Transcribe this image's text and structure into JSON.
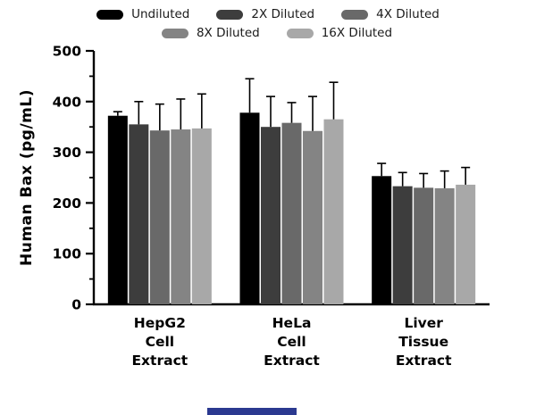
{
  "figure": {
    "title": "",
    "y_axis_label": "Human Bax (pg/mL)"
  },
  "chart_data": {
    "type": "bar",
    "title": "",
    "xlabel": "",
    "ylabel": "Human Bax (pg/mL)",
    "ylim": [
      0,
      500
    ],
    "yticks": [
      0,
      100,
      200,
      300,
      400,
      500
    ],
    "minor_tick_step": 50,
    "grid": false,
    "legend_position": "top",
    "error_bars": "upper SD with caps",
    "categories": [
      [
        "HepG2",
        "Cell",
        "Extract"
      ],
      [
        "HeLa",
        "Cell",
        "Extract"
      ],
      [
        "Liver",
        "Tissue",
        "Extract"
      ]
    ],
    "series": [
      {
        "name": "Undiluted",
        "color": "#000000",
        "values": [
          372,
          378,
          253
        ],
        "errors": [
          8,
          67,
          25
        ]
      },
      {
        "name": "2X Diluted",
        "color": "#3d3d3d",
        "values": [
          355,
          350,
          233
        ],
        "errors": [
          45,
          60,
          27
        ]
      },
      {
        "name": "4X Diluted",
        "color": "#696969",
        "values": [
          343,
          358,
          230
        ],
        "errors": [
          52,
          40,
          28
        ]
      },
      {
        "name": "8X Diluted",
        "color": "#848484",
        "values": [
          345,
          342,
          229
        ],
        "errors": [
          60,
          68,
          34
        ]
      },
      {
        "name": "16X Diluted",
        "color": "#a8a8a8",
        "values": [
          347,
          365,
          236
        ],
        "errors": [
          68,
          73,
          34
        ]
      }
    ],
    "legend_rows": [
      3,
      2
    ]
  },
  "footer": {
    "watermark_color": "#2b3990"
  }
}
